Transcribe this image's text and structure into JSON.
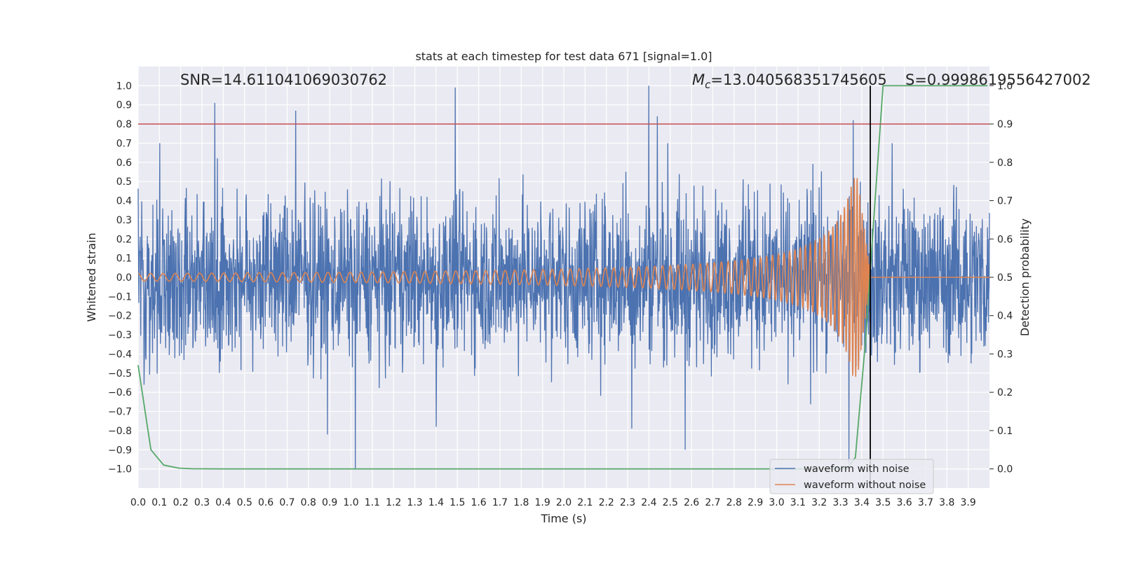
{
  "chart_data": {
    "type": "line",
    "title": "stats at each timestep for test data 671 [signal=1.0]",
    "xlabel": "Time (s)",
    "ylabel_left": "Whitened strain",
    "ylabel_right": "Detection probability",
    "xlim": [
      0.0,
      4.0
    ],
    "ylim_left": [
      -1.1,
      1.1
    ],
    "ylim_right": [
      -0.05,
      1.05
    ],
    "x_ticks": [
      "0.0",
      "0.1",
      "0.2",
      "0.3",
      "0.4",
      "0.5",
      "0.6",
      "0.7",
      "0.8",
      "0.9",
      "1.0",
      "1.1",
      "1.2",
      "1.3",
      "1.4",
      "1.5",
      "1.6",
      "1.7",
      "1.8",
      "1.9",
      "2.0",
      "2.1",
      "2.2",
      "2.3",
      "2.4",
      "2.5",
      "2.6",
      "2.7",
      "2.8",
      "2.9",
      "3.0",
      "3.1",
      "3.2",
      "3.3",
      "3.4",
      "3.5",
      "3.6",
      "3.7",
      "3.8",
      "3.9"
    ],
    "y_ticks_left": [
      "1.0",
      "0.9",
      "0.8",
      "0.7",
      "0.6",
      "0.5",
      "0.4",
      "0.3",
      "0.2",
      "0.1",
      "0.0",
      "−0.1",
      "−0.2",
      "−0.3",
      "−0.4",
      "−0.5",
      "−0.6",
      "−0.7",
      "−0.8",
      "−0.9",
      "−1.0"
    ],
    "y_ticks_right": [
      "1.0",
      "0.9",
      "0.8",
      "0.7",
      "0.6",
      "0.5",
      "0.4",
      "0.3",
      "0.2",
      "0.1",
      "0.0"
    ],
    "annotations": {
      "snr": "SNR=14.611041069030762",
      "mc_symbol": "M",
      "mc_subscript": "c",
      "mc_value": "=13.040568351745605",
      "s_value": "S=0.9998619556427002"
    },
    "threshold_line": {
      "axis": "right",
      "value": 0.9,
      "color": "#c44e52"
    },
    "merger_line": {
      "x": 3.44,
      "color": "#000000"
    },
    "series": [
      {
        "name": "waveform with noise",
        "color": "#4c72b0",
        "amplitude_typical": 0.45,
        "spikes": [
          {
            "x": 0.36,
            "y": 0.91
          },
          {
            "x": 0.74,
            "y": 0.87
          },
          {
            "x": 1.49,
            "y": 0.99
          },
          {
            "x": 2.4,
            "y": 1.0
          },
          {
            "x": 2.44,
            "y": 0.84
          },
          {
            "x": 3.36,
            "y": 0.82
          },
          {
            "x": 0.89,
            "y": -0.82
          },
          {
            "x": 1.02,
            "y": -1.0
          },
          {
            "x": 2.57,
            "y": -0.9
          },
          {
            "x": 3.34,
            "y": -0.97
          },
          {
            "x": 1.4,
            "y": -0.78
          },
          {
            "x": 2.32,
            "y": -0.79
          }
        ]
      },
      {
        "name": "waveform without noise",
        "color": "#dd8452",
        "chirp": {
          "merger_time": 3.44,
          "amp_start": 0.02,
          "amp_peak": 0.52,
          "peak_time": 3.38,
          "f_start": 17,
          "f_end": 200
        }
      }
    ],
    "detection_probability": {
      "name": "Detection probability",
      "color": "#55a868",
      "x": [
        0.0,
        0.06,
        0.12,
        0.19,
        0.25,
        0.4,
        1.0,
        2.0,
        3.0,
        3.2,
        3.33,
        3.37,
        3.42,
        3.45,
        3.5,
        3.7,
        3.9,
        3.99
      ],
      "y": [
        0.27,
        0.05,
        0.01,
        0.002,
        0.0005,
        0.0,
        0.0,
        0.0,
        0.0,
        0.0,
        0.0,
        0.03,
        0.35,
        0.6,
        1.0,
        1.0,
        1.0,
        1.0
      ]
    },
    "legend": {
      "position": "lower-right",
      "entries": [
        "waveform with noise",
        "waveform without noise"
      ]
    }
  }
}
